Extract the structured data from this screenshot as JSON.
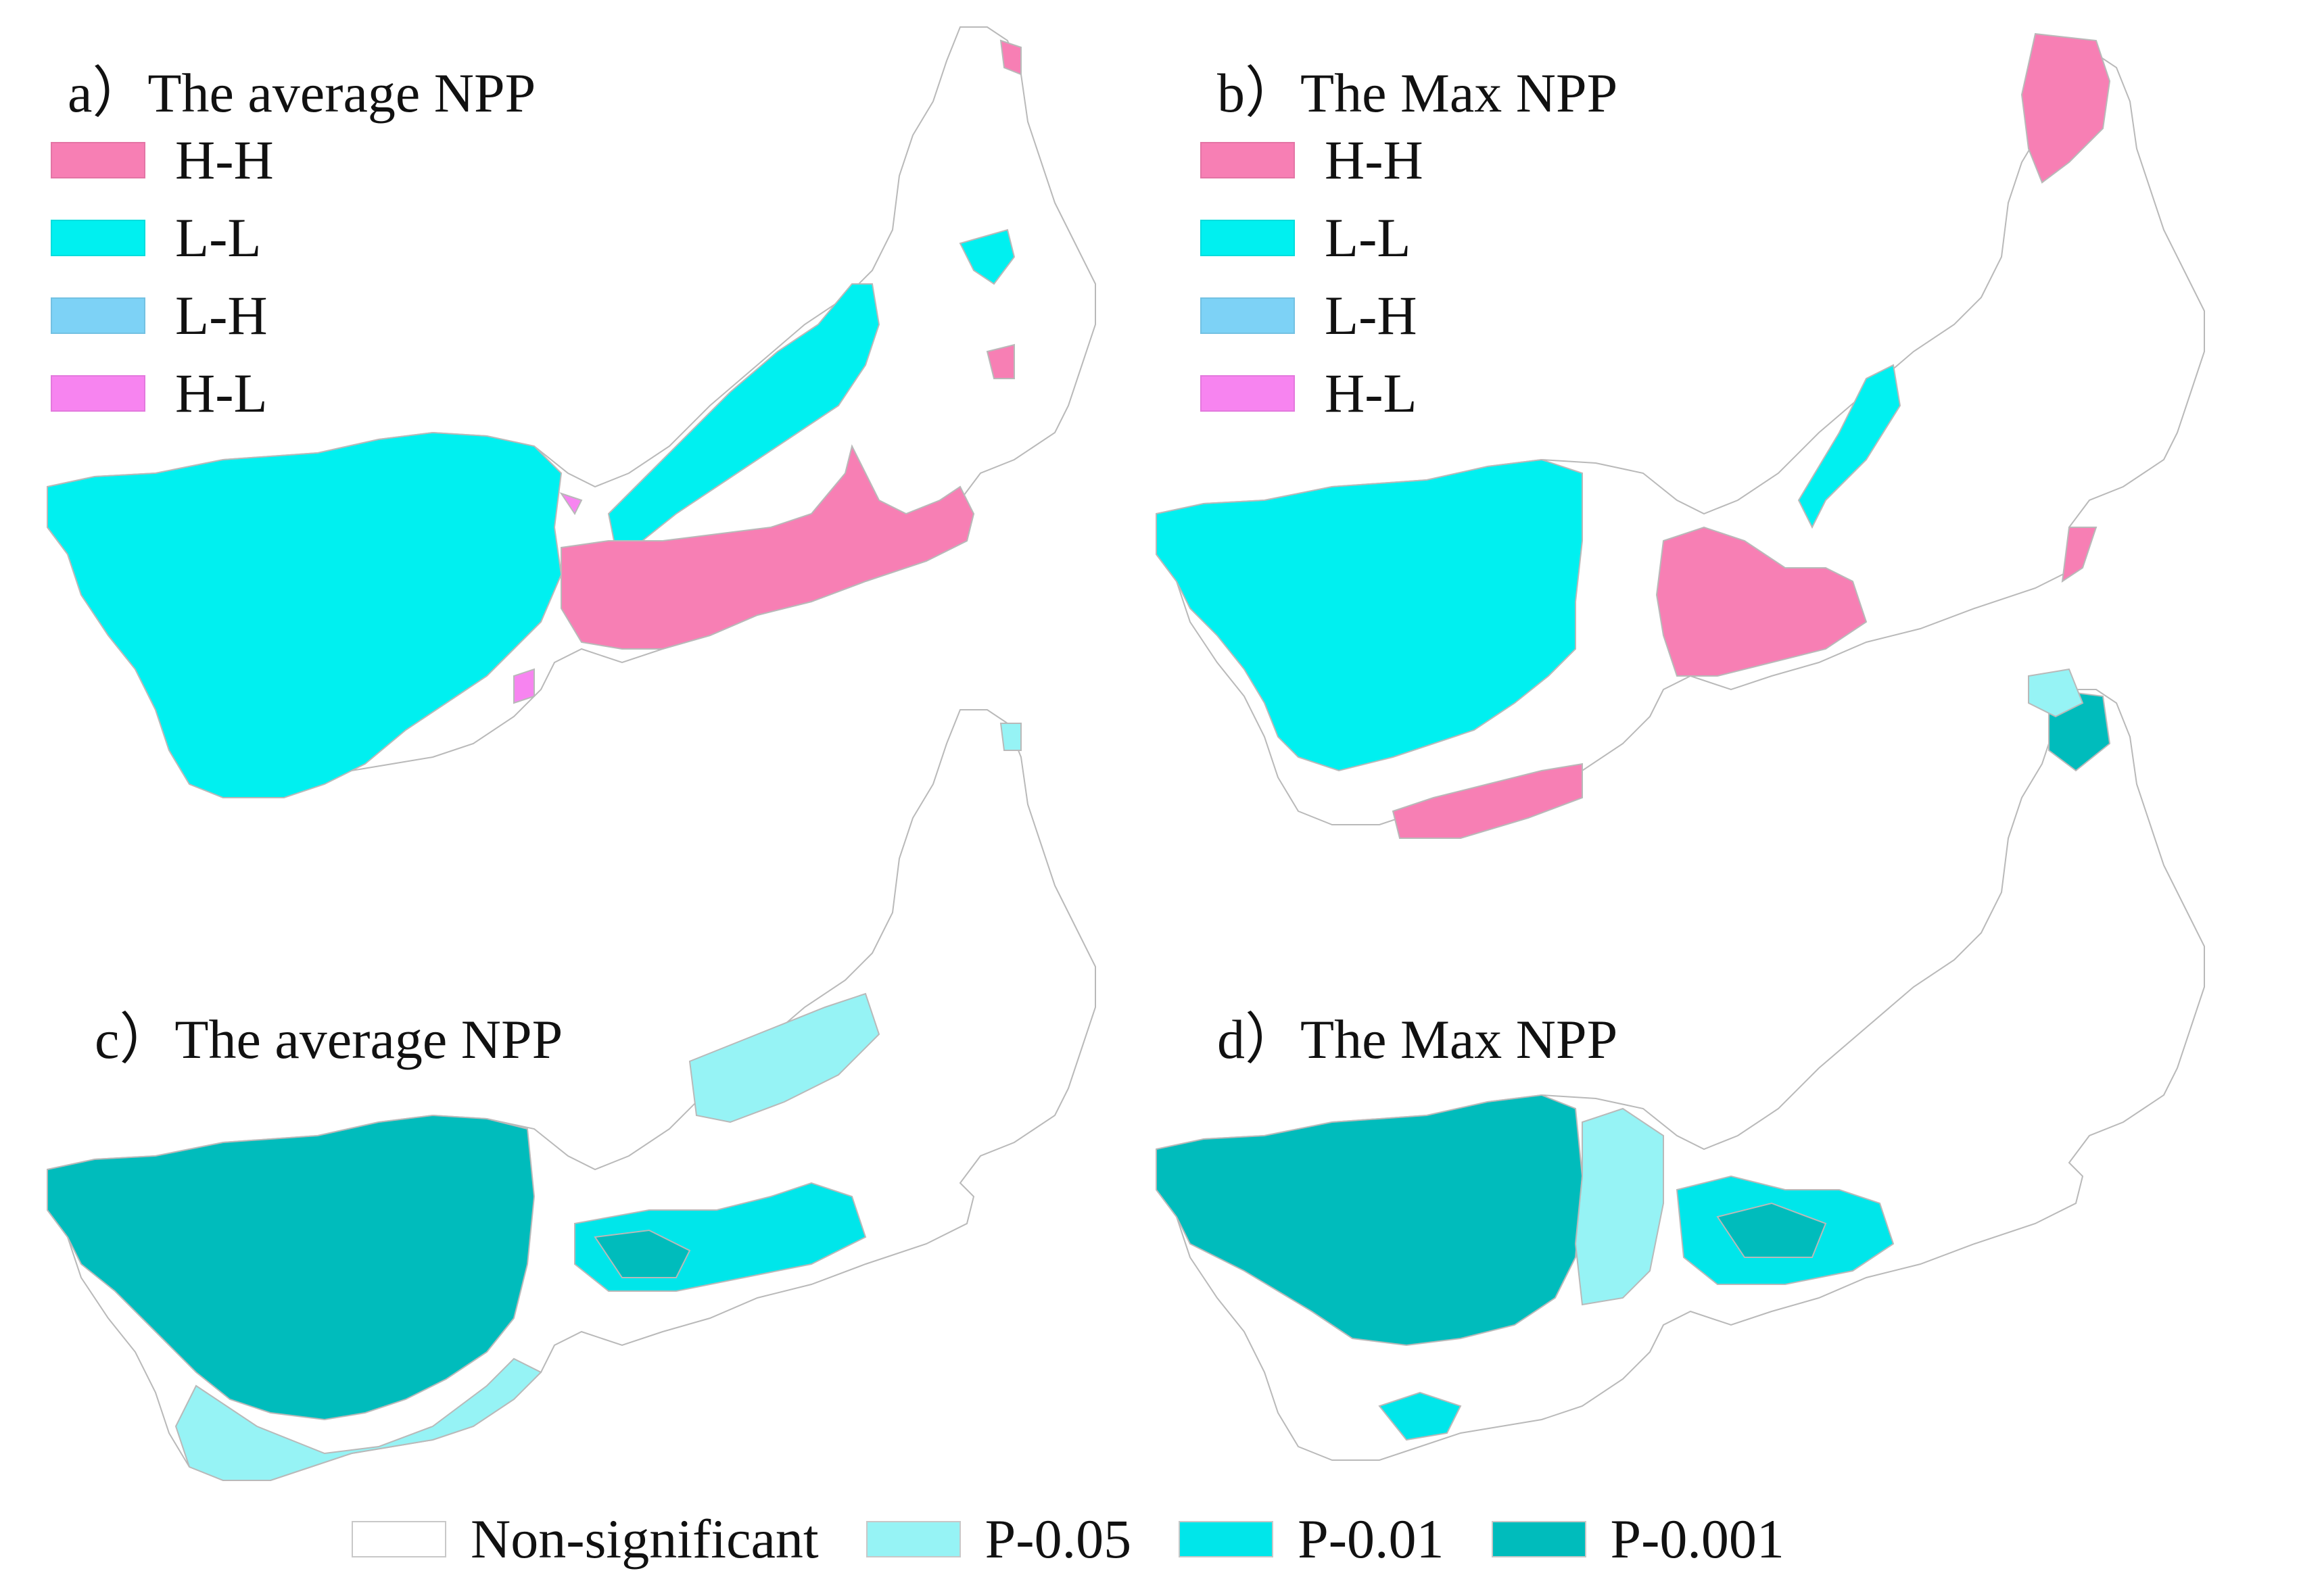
{
  "colors": {
    "hh": "#f77fb4",
    "ll": "#00f0f0",
    "lh": "#7dd2f6",
    "hl": "#f784f0",
    "non_significant": "#ffffff",
    "p005": "#96f3f5",
    "p001": "#00e6ea",
    "p0001": "#00bcbc",
    "boundary": "#b9b9b9"
  },
  "panels": [
    {
      "id": "a",
      "title": "a）The average NPP"
    },
    {
      "id": "b",
      "title": "b）The Max NPP"
    },
    {
      "id": "c",
      "title": "c）The average NPP"
    },
    {
      "id": "d",
      "title": "d）The Max NPP"
    }
  ],
  "lisa_legend": [
    {
      "label": "H-H",
      "color_key": "hh"
    },
    {
      "label": "L-L",
      "color_key": "ll"
    },
    {
      "label": "L-H",
      "color_key": "lh"
    },
    {
      "label": "H-L",
      "color_key": "hl"
    }
  ],
  "significance_legend": [
    {
      "label": "Non-significant",
      "color_key": "non_significant"
    },
    {
      "label": "P-0.05",
      "color_key": "p005"
    },
    {
      "label": "P-0.01",
      "color_key": "p001"
    },
    {
      "label": "P-0.001",
      "color_key": "p0001"
    }
  ]
}
